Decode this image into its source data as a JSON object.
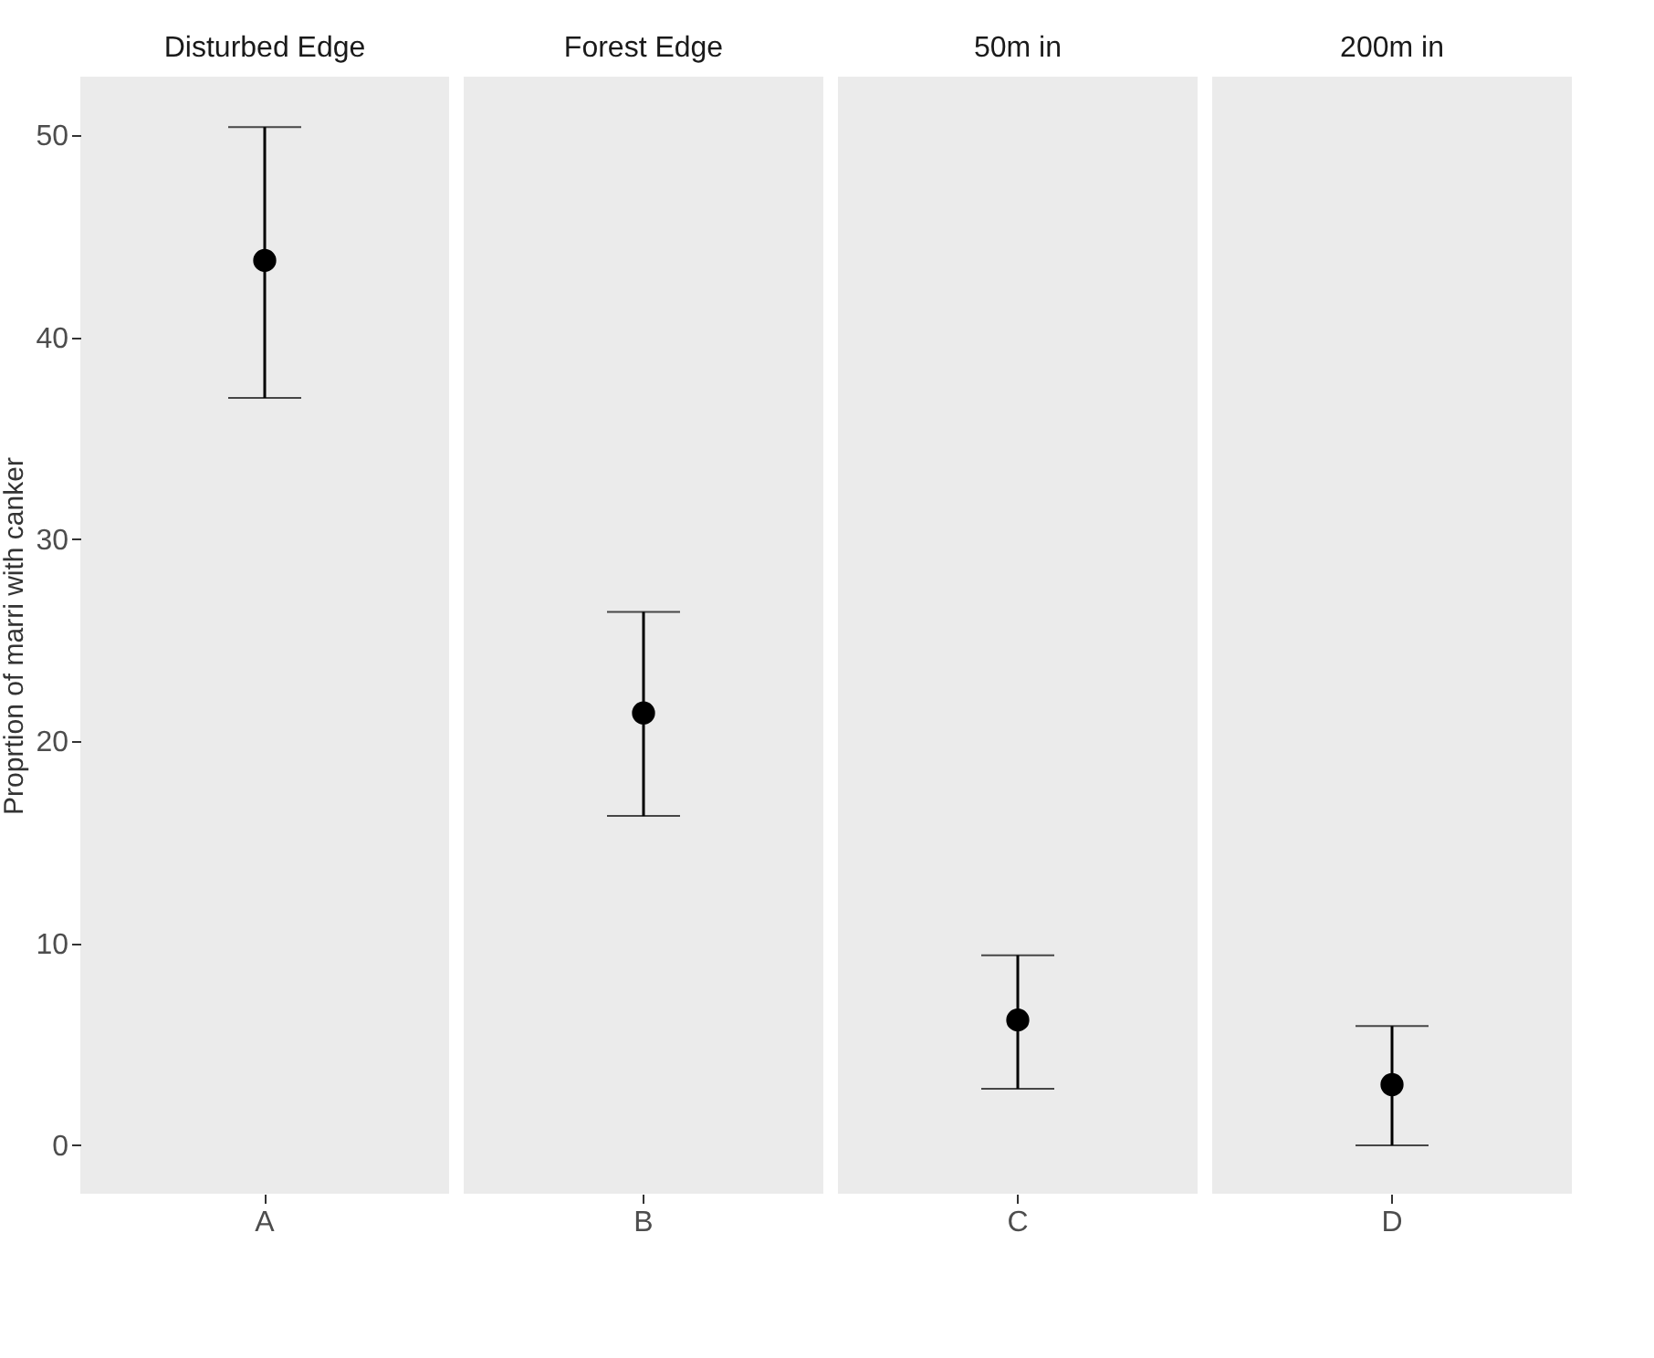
{
  "chart_data": [
    {
      "type": "scatter",
      "title": "Disturbed Edge",
      "ylabel": "Proprtion of marri with canker",
      "categories": [
        "A"
      ],
      "series": [
        {
          "color": "#000000",
          "values": [
            43.8
          ],
          "errors": [
            [
              37.0,
              50.4
            ]
          ]
        }
      ],
      "marker": "circle",
      "ylim": [
        -2.4,
        52.9
      ],
      "yticks": [
        0,
        10,
        20,
        30,
        40,
        50
      ],
      "grid": false
    },
    {
      "type": "scatter",
      "title": "Forest Edge",
      "categories": [
        "B"
      ],
      "series": [
        {
          "color": "#000000",
          "values": [
            21.4
          ],
          "errors": [
            [
              16.3,
              26.4
            ]
          ]
        }
      ],
      "marker": "circle",
      "ylim": [
        -2.4,
        52.9
      ],
      "yticks": [
        0,
        10,
        20,
        30,
        40,
        50
      ],
      "grid": false,
      "tick_labels": "x"
    },
    {
      "type": "scatter",
      "title": "50m in",
      "categories": [
        "C"
      ],
      "series": [
        {
          "color": "#000000",
          "values": [
            6.2
          ],
          "errors": [
            [
              2.8,
              9.4
            ]
          ]
        }
      ],
      "marker": "circle",
      "ylim": [
        -2.4,
        52.9
      ],
      "yticks": [
        0,
        10,
        20,
        30,
        40,
        50
      ],
      "grid": false,
      "tick_labels": "x"
    },
    {
      "type": "scatter",
      "title": "200m in",
      "categories": [
        "D"
      ],
      "series": [
        {
          "color": "#000000",
          "values": [
            3.0
          ],
          "errors": [
            [
              0.0,
              5.9
            ]
          ]
        }
      ],
      "marker": "circle",
      "ylim": [
        -2.4,
        52.9
      ],
      "yticks": [
        0,
        10,
        20,
        30,
        40,
        50
      ],
      "grid": false,
      "tick_labels": "x"
    }
  ]
}
